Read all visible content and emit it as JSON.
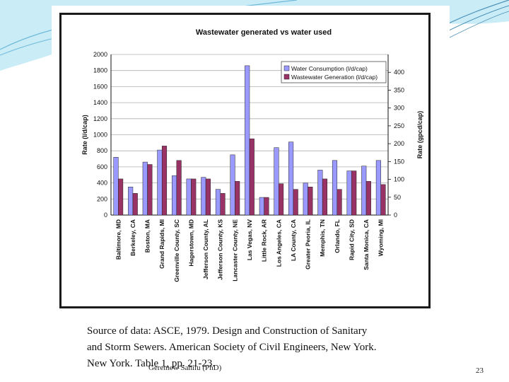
{
  "slide": {
    "source_text": "Source of data:  ASCE, 1979. Design and Construction of Sanitary and Storm Sewers. American Society of Civil Engineers, New York. New York.  Table 1, pp. 21-23.",
    "author": "Geremew Sahilu (PhD)",
    "page_number": "23",
    "colors": {
      "background_swirl": "#8fd0e8",
      "frame": "#1a1a1a"
    }
  },
  "chart_data": {
    "type": "bar",
    "title": "Wastewater generated vs water used",
    "ylabel": "Rate (l/d/cap)",
    "y2label": "Rate (gpcd/cap)",
    "ylim": [
      0,
      2000
    ],
    "y2lim": [
      0,
      450
    ],
    "yticks": [
      0,
      200,
      400,
      600,
      800,
      1000,
      1200,
      1400,
      1600,
      1800,
      2000
    ],
    "y2ticks": [
      0,
      50,
      100,
      150,
      200,
      250,
      300,
      350,
      400
    ],
    "grid": true,
    "legend_position": "top-right",
    "categories": [
      "Baltimore, MD",
      "Berkeley, CA",
      "Boston, MA",
      "Grand Rapids, MI",
      "Greenville County, SC",
      "Hagerstown, MD",
      "Jefferson County, AL",
      "Jefferson County, KS",
      "Lancaster County, NE",
      "Las Vegas, NV",
      "Little Rock, AR",
      "Los Angeles, CA",
      "LA County, CA",
      "Greater Peoria, IL",
      "Memphis, TN",
      "Orlando, FL",
      "Rapid City, SD",
      "Santa Monica, CA",
      "Wyoming, MI"
    ],
    "series": [
      {
        "name": "Water Consumption (l/d/cap)",
        "color": "#9999ff",
        "values": [
          720,
          350,
          660,
          810,
          490,
          450,
          470,
          320,
          750,
          1860,
          220,
          840,
          910,
          400,
          560,
          680,
          550,
          610,
          680
        ]
      },
      {
        "name": "Wastewater Generation (l/d/cap)",
        "color": "#993366",
        "values": [
          450,
          270,
          630,
          860,
          680,
          450,
          450,
          270,
          420,
          950,
          220,
          390,
          320,
          350,
          450,
          320,
          550,
          420,
          380
        ]
      }
    ]
  }
}
